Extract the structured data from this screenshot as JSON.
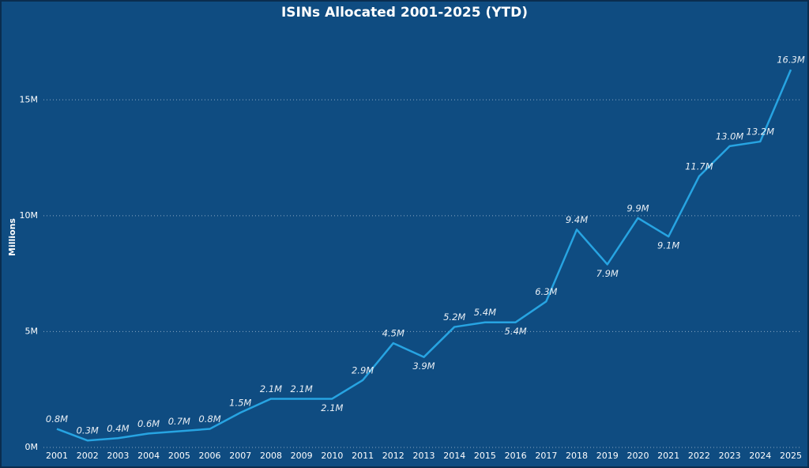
{
  "chart_data": {
    "type": "line",
    "title": "ISINs Allocated 2001-2025 (YTD)",
    "y_label": "Millions",
    "categories": [
      "2001",
      "2002",
      "2003",
      "2004",
      "2005",
      "2006",
      "2007",
      "2008",
      "2009",
      "2010",
      "2011",
      "2012",
      "2013",
      "2014",
      "2015",
      "2016",
      "2017",
      "2018",
      "2019",
      "2020",
      "2021",
      "2022",
      "2023",
      "2024",
      "2025"
    ],
    "values": [
      0.8,
      0.3,
      0.4,
      0.6,
      0.7,
      0.8,
      1.5,
      2.1,
      2.1,
      2.1,
      2.9,
      4.5,
      3.9,
      5.2,
      5.4,
      5.4,
      6.3,
      9.4,
      7.9,
      9.9,
      9.1,
      11.7,
      13.0,
      13.2,
      16.3
    ],
    "value_labels": [
      "0.8M",
      "0.3M",
      "0.4M",
      "0.6M",
      "0.7M",
      "0.8M",
      "1.5M",
      "2.1M",
      "2.1M",
      "2.1M",
      "2.9M",
      "4.5M",
      "3.9M",
      "5.2M",
      "5.4M",
      "5.4M",
      "6.3M",
      "9.4M",
      "7.9M",
      "9.9M",
      "9.1M",
      "11.7M",
      "13.0M",
      "13.2M",
      "16.3M"
    ],
    "color": "#27a4e2",
    "ylim": [
      0,
      17.5
    ],
    "yticks": [
      {
        "value": 0,
        "label": "0M"
      },
      {
        "value": 5,
        "label": "5M"
      },
      {
        "value": 10,
        "label": "10M"
      },
      {
        "value": 15,
        "label": "15M"
      }
    ],
    "grid": true
  }
}
